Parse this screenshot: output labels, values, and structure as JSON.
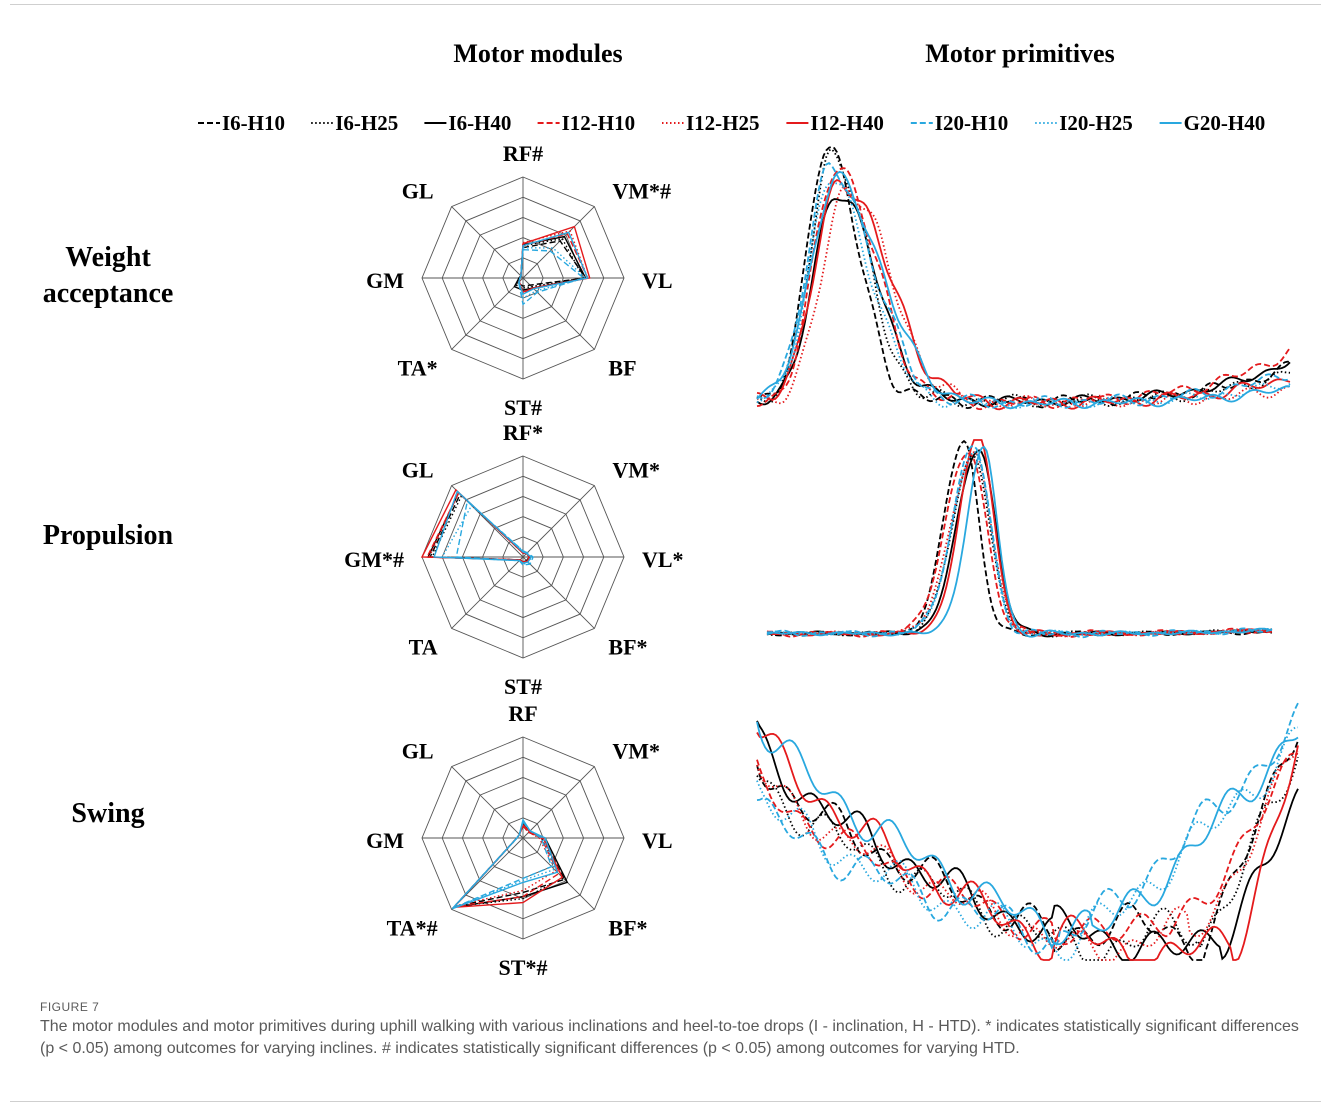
{
  "headers": {
    "modules": "Motor modules",
    "primitives": "Motor primitives"
  },
  "rows": [
    {
      "line1": "Weight",
      "line2": "acceptance"
    },
    {
      "line1": "Propulsion"
    },
    {
      "line1": "Swing"
    }
  ],
  "legend": [
    {
      "name": "I6-H10",
      "color": "#000000",
      "dash": "dashed"
    },
    {
      "name": "I6-H25",
      "color": "#000000",
      "dash": "dotted"
    },
    {
      "name": "I6-H40",
      "color": "#000000",
      "dash": "solid"
    },
    {
      "name": "I12-H10",
      "color": "#e41a1c",
      "dash": "dashed"
    },
    {
      "name": "I12-H25",
      "color": "#e41a1c",
      "dash": "dotted"
    },
    {
      "name": "I12-H40",
      "color": "#e41a1c",
      "dash": "solid"
    },
    {
      "name": "I20-H10",
      "color": "#29a8df",
      "dash": "dashed"
    },
    {
      "name": "I20-H25",
      "color": "#29a8df",
      "dash": "dotted"
    },
    {
      "name": "G20-H40",
      "color": "#29a8df",
      "dash": "solid"
    }
  ],
  "caption": {
    "label": "FIGURE 7",
    "text": "The motor modules and motor primitives during uphill walking with various inclinations and heel-to-toe drops (I - inclination, H - HTD). * indicates statistically significant differences (p < 0.05) among outcomes for varying inclines. # indicates statistically significant differences (p < 0.05) among outcomes for varying HTD."
  },
  "chart_data": [
    {
      "type": "radar",
      "panel": "Weight acceptance - motor modules",
      "axes": [
        "RF#",
        "VM*#",
        "VL",
        "BF",
        "ST#",
        "TA*",
        "GM",
        "GL"
      ],
      "rlim": [
        0,
        1
      ],
      "grid_levels": 5,
      "series": [
        {
          "name": "I6-H10",
          "values": [
            0.3,
            0.52,
            0.62,
            0.1,
            0.08,
            0.07,
            0.04,
            0.03
          ]
        },
        {
          "name": "I6-H25",
          "values": [
            0.32,
            0.55,
            0.6,
            0.12,
            0.1,
            0.1,
            0.04,
            0.03
          ]
        },
        {
          "name": "I6-H40",
          "values": [
            0.33,
            0.58,
            0.62,
            0.14,
            0.12,
            0.12,
            0.04,
            0.03
          ]
        },
        {
          "name": "I12-H10",
          "values": [
            0.32,
            0.62,
            0.64,
            0.14,
            0.15,
            0.05,
            0.03,
            0.03
          ]
        },
        {
          "name": "I12-H25",
          "values": [
            0.35,
            0.66,
            0.64,
            0.15,
            0.14,
            0.05,
            0.03,
            0.03
          ]
        },
        {
          "name": "I12-H40",
          "values": [
            0.34,
            0.72,
            0.66,
            0.14,
            0.14,
            0.06,
            0.03,
            0.03
          ]
        },
        {
          "name": "I20-H10",
          "values": [
            0.28,
            0.38,
            0.6,
            0.2,
            0.26,
            0.06,
            0.03,
            0.03
          ]
        },
        {
          "name": "I20-H25",
          "values": [
            0.3,
            0.42,
            0.62,
            0.18,
            0.2,
            0.05,
            0.03,
            0.03
          ]
        },
        {
          "name": "G20-H40",
          "values": [
            0.32,
            0.64,
            0.64,
            0.15,
            0.16,
            0.06,
            0.03,
            0.03
          ]
        }
      ]
    },
    {
      "type": "radar",
      "panel": "Propulsion - motor modules",
      "axes": [
        "RF*",
        "VM*",
        "VL*",
        "BF*",
        "ST#",
        "TA",
        "GM*#",
        "GL"
      ],
      "rlim": [
        0,
        1
      ],
      "grid_levels": 5,
      "series": [
        {
          "name": "I6-H10",
          "values": [
            0.04,
            0.05,
            0.06,
            0.06,
            0.05,
            0.04,
            0.92,
            0.88
          ]
        },
        {
          "name": "I6-H25",
          "values": [
            0.04,
            0.05,
            0.07,
            0.06,
            0.05,
            0.04,
            0.9,
            0.86
          ]
        },
        {
          "name": "I6-H40",
          "values": [
            0.04,
            0.05,
            0.06,
            0.05,
            0.05,
            0.04,
            0.94,
            0.9
          ]
        },
        {
          "name": "I12-H10",
          "values": [
            0.04,
            0.05,
            0.07,
            0.06,
            0.05,
            0.04,
            0.95,
            0.9
          ]
        },
        {
          "name": "I12-H25",
          "values": [
            0.04,
            0.05,
            0.06,
            0.06,
            0.05,
            0.04,
            0.93,
            0.9
          ]
        },
        {
          "name": "I12-H40",
          "values": [
            0.04,
            0.05,
            0.06,
            0.06,
            0.05,
            0.04,
            1.0,
            0.94
          ]
        },
        {
          "name": "I20-H10",
          "values": [
            0.06,
            0.06,
            0.1,
            0.1,
            0.08,
            0.05,
            0.66,
            0.78
          ]
        },
        {
          "name": "I20-H25",
          "values": [
            0.06,
            0.06,
            0.08,
            0.08,
            0.07,
            0.05,
            0.8,
            0.72
          ]
        },
        {
          "name": "G20-H40",
          "values": [
            0.05,
            0.05,
            0.08,
            0.07,
            0.06,
            0.05,
            0.88,
            0.92
          ]
        }
      ]
    },
    {
      "type": "radar",
      "panel": "Swing - motor modules",
      "axes": [
        "RF",
        "VM*",
        "VL",
        "BF*",
        "ST*#",
        "TA*#",
        "GM",
        "GL"
      ],
      "rlim": [
        0,
        1
      ],
      "grid_levels": 5,
      "series": [
        {
          "name": "I6-H10",
          "values": [
            0.12,
            0.08,
            0.2,
            0.58,
            0.54,
            0.96,
            0.06,
            0.05
          ]
        },
        {
          "name": "I6-H25",
          "values": [
            0.12,
            0.08,
            0.18,
            0.56,
            0.6,
            0.96,
            0.06,
            0.05
          ]
        },
        {
          "name": "I6-H40",
          "values": [
            0.14,
            0.09,
            0.22,
            0.62,
            0.58,
            0.97,
            0.06,
            0.05
          ]
        },
        {
          "name": "I12-H10",
          "values": [
            0.12,
            0.08,
            0.18,
            0.5,
            0.58,
            0.96,
            0.06,
            0.05
          ]
        },
        {
          "name": "I12-H25",
          "values": [
            0.12,
            0.08,
            0.16,
            0.46,
            0.52,
            0.95,
            0.06,
            0.05
          ]
        },
        {
          "name": "I12-H40",
          "values": [
            0.13,
            0.09,
            0.2,
            0.55,
            0.64,
            0.97,
            0.06,
            0.05
          ]
        },
        {
          "name": "I20-H10",
          "values": [
            0.16,
            0.1,
            0.18,
            0.4,
            0.4,
            0.98,
            0.06,
            0.05
          ]
        },
        {
          "name": "I20-H25",
          "values": [
            0.16,
            0.1,
            0.2,
            0.44,
            0.42,
            0.98,
            0.06,
            0.05
          ]
        },
        {
          "name": "G20-H40",
          "values": [
            0.18,
            0.1,
            0.22,
            0.48,
            0.44,
            0.99,
            0.06,
            0.05
          ]
        }
      ]
    },
    {
      "type": "line",
      "panel": "Weight acceptance - motor primitives",
      "ylim": [
        0,
        1
      ],
      "x_samples": 200,
      "series": [
        {
          "name": "I6-H10",
          "peak": 0.13,
          "width": 0.09,
          "amp": 0.95,
          "baseline": 0.12,
          "end": 0.14,
          "wobble": 0.05
        },
        {
          "name": "I6-H25",
          "peak": 0.14,
          "width": 0.1,
          "amp": 0.92,
          "baseline": 0.11,
          "end": 0.12,
          "wobble": 0.05
        },
        {
          "name": "I6-H40",
          "peak": 0.15,
          "width": 0.11,
          "amp": 0.78,
          "baseline": 0.1,
          "end": 0.16,
          "wobble": 0.04
        },
        {
          "name": "I12-H10",
          "peak": 0.15,
          "width": 0.11,
          "amp": 0.88,
          "baseline": 0.06,
          "end": 0.2,
          "wobble": 0.05
        },
        {
          "name": "I12-H25",
          "peak": 0.17,
          "width": 0.12,
          "amp": 0.8,
          "baseline": 0.06,
          "end": 0.06,
          "wobble": 0.05
        },
        {
          "name": "I12-H40",
          "peak": 0.16,
          "width": 0.13,
          "amp": 0.82,
          "baseline": 0.06,
          "end": 0.1,
          "wobble": 0.05
        },
        {
          "name": "I20-H10",
          "peak": 0.14,
          "width": 0.12,
          "amp": 0.86,
          "baseline": 0.05,
          "end": 0.12,
          "wobble": 0.05
        },
        {
          "name": "I20-H25",
          "peak": 0.14,
          "width": 0.11,
          "amp": 0.82,
          "baseline": 0.05,
          "end": 0.08,
          "wobble": 0.04
        },
        {
          "name": "G20-H40",
          "peak": 0.15,
          "width": 0.13,
          "amp": 0.82,
          "baseline": 0.04,
          "end": 0.06,
          "wobble": 0.04
        }
      ]
    },
    {
      "type": "line",
      "panel": "Propulsion - motor primitives",
      "ylim": [
        0,
        1
      ],
      "x_samples": 200,
      "series": [
        {
          "name": "I6-H10",
          "peak": 0.39,
          "width": 0.1,
          "amp": 0.98,
          "baseline": 0.01,
          "end": 0.01,
          "wobble": 0.02
        },
        {
          "name": "I6-H25",
          "peak": 0.41,
          "width": 0.11,
          "amp": 0.9,
          "baseline": 0.02,
          "end": 0.02,
          "wobble": 0.02
        },
        {
          "name": "I6-H40",
          "peak": 0.42,
          "width": 0.11,
          "amp": 0.94,
          "baseline": 0.02,
          "end": 0.02,
          "wobble": 0.02
        },
        {
          "name": "I12-H10",
          "peak": 0.4,
          "width": 0.12,
          "amp": 0.92,
          "baseline": 0.01,
          "end": 0.02,
          "wobble": 0.03
        },
        {
          "name": "I12-H25",
          "peak": 0.41,
          "width": 0.12,
          "amp": 0.9,
          "baseline": 0.02,
          "end": 0.02,
          "wobble": 0.02
        },
        {
          "name": "I12-H40",
          "peak": 0.42,
          "width": 0.1,
          "amp": 1.0,
          "baseline": 0.01,
          "end": 0.02,
          "wobble": 0.02
        },
        {
          "name": "I20-H10",
          "peak": 0.41,
          "width": 0.11,
          "amp": 0.95,
          "baseline": 0.02,
          "end": 0.02,
          "wobble": 0.03
        },
        {
          "name": "I20-H25",
          "peak": 0.41,
          "width": 0.11,
          "amp": 0.92,
          "baseline": 0.02,
          "end": 0.02,
          "wobble": 0.02
        },
        {
          "name": "G20-H40",
          "peak": 0.43,
          "width": 0.09,
          "amp": 0.93,
          "baseline": 0.02,
          "end": 0.02,
          "wobble": 0.02
        }
      ]
    },
    {
      "type": "line",
      "panel": "Swing - motor primitives",
      "ylim": [
        0,
        1
      ],
      "x_samples": 200,
      "series": [
        {
          "name": "I6-H10",
          "start": 0.78,
          "trough": 0.55,
          "depth": 0.1,
          "end": 0.92,
          "rise": 0.83,
          "wobble": 0.07
        },
        {
          "name": "I6-H25",
          "start": 0.72,
          "trough": 0.52,
          "depth": 0.08,
          "end": 0.8,
          "rise": 0.82,
          "wobble": 0.07
        },
        {
          "name": "I6-H40",
          "start": 0.85,
          "trough": 0.6,
          "depth": 0.08,
          "end": 0.62,
          "rise": 0.86,
          "wobble": 0.07
        },
        {
          "name": "I12-H10",
          "start": 0.7,
          "trough": 0.52,
          "depth": 0.1,
          "end": 0.78,
          "rise": 0.76,
          "wobble": 0.06
        },
        {
          "name": "I12-H25",
          "start": 0.74,
          "trough": 0.55,
          "depth": 0.08,
          "end": 0.82,
          "rise": 0.8,
          "wobble": 0.06
        },
        {
          "name": "I12-H40",
          "start": 0.9,
          "trough": 0.62,
          "depth": 0.05,
          "end": 0.8,
          "rise": 0.88,
          "wobble": 0.07
        },
        {
          "name": "I20-H10",
          "start": 0.6,
          "trough": 0.36,
          "depth": 0.08,
          "end": 0.9,
          "rise": 0.56,
          "wobble": 0.07
        },
        {
          "name": "I20-H25",
          "start": 0.66,
          "trough": 0.32,
          "depth": 0.05,
          "end": 0.84,
          "rise": 0.56,
          "wobble": 0.07
        },
        {
          "name": "G20-H40",
          "start": 0.95,
          "trough": 0.38,
          "depth": 0.1,
          "end": 0.88,
          "rise": 0.62,
          "wobble": 0.07
        }
      ]
    }
  ]
}
